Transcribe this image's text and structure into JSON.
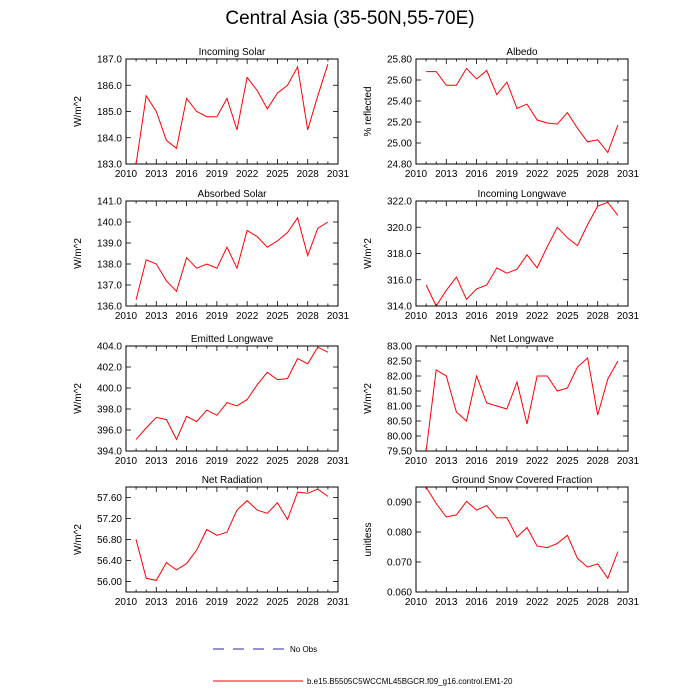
{
  "title": "Central Asia (35-50N,55-70E)",
  "colors": {
    "model": "#ff0000",
    "obs": "#2a2aa0",
    "axis": "#000000"
  },
  "legend": {
    "obs_label": "No Obs",
    "model_label": "b.e15.B5505C5WCCML45BGCR.f09_g16.control.EM1-20"
  },
  "xaxis": {
    "ticks": [
      2010,
      2013,
      2016,
      2019,
      2022,
      2025,
      2028,
      2031
    ],
    "range": [
      2010,
      2031
    ]
  },
  "chart_data": [
    {
      "type": "line",
      "title": "Incoming Solar",
      "ylabel": "W/m^2",
      "ylim": [
        183.0,
        187.0
      ],
      "yticks": [
        "183.0",
        "184.0",
        "185.0",
        "186.0",
        "187.0"
      ],
      "x": [
        2011,
        2012,
        2013,
        2014,
        2015,
        2016,
        2017,
        2018,
        2019,
        2020,
        2021,
        2022,
        2023,
        2024,
        2025,
        2026,
        2027,
        2028,
        2029,
        2030
      ],
      "values": [
        183.0,
        185.6,
        185.0,
        183.9,
        183.6,
        185.5,
        185.0,
        184.8,
        184.8,
        185.5,
        184.3,
        186.3,
        185.8,
        185.1,
        185.7,
        186.0,
        186.7,
        184.3,
        185.6,
        186.8
      ]
    },
    {
      "type": "line",
      "title": "Albedo",
      "ylabel": "% reflected",
      "ylim": [
        24.8,
        25.8
      ],
      "yticks": [
        "24.80",
        "25.00",
        "25.20",
        "25.40",
        "25.60",
        "25.80"
      ],
      "x": [
        2011,
        2012,
        2013,
        2014,
        2015,
        2016,
        2017,
        2018,
        2019,
        2020,
        2021,
        2022,
        2023,
        2024,
        2025,
        2026,
        2027,
        2028,
        2029,
        2030
      ],
      "values": [
        25.68,
        25.68,
        25.55,
        25.55,
        25.71,
        25.61,
        25.69,
        25.46,
        25.58,
        25.33,
        25.37,
        25.22,
        25.19,
        25.18,
        25.29,
        25.14,
        25.01,
        25.03,
        24.91,
        25.17
      ]
    },
    {
      "type": "line",
      "title": "Absorbed Solar",
      "ylabel": "W/m^2",
      "ylim": [
        136.0,
        141.0
      ],
      "yticks": [
        "136.0",
        "137.0",
        "138.0",
        "139.0",
        "140.0",
        "141.0"
      ],
      "x": [
        2011,
        2012,
        2013,
        2014,
        2015,
        2016,
        2017,
        2018,
        2019,
        2020,
        2021,
        2022,
        2023,
        2024,
        2025,
        2026,
        2027,
        2028,
        2029,
        2030
      ],
      "values": [
        136.3,
        138.2,
        138.0,
        137.2,
        136.7,
        138.3,
        137.8,
        138.0,
        137.8,
        138.8,
        137.8,
        139.6,
        139.3,
        138.8,
        139.1,
        139.5,
        140.2,
        138.4,
        139.7,
        140.0
      ]
    },
    {
      "type": "line",
      "title": "Incoming Longwave",
      "ylabel": "W/m^2",
      "ylim": [
        314.0,
        322.0
      ],
      "yticks": [
        "314.0",
        "316.0",
        "318.0",
        "320.0",
        "322.0"
      ],
      "x": [
        2011,
        2012,
        2013,
        2014,
        2015,
        2016,
        2017,
        2018,
        2019,
        2020,
        2021,
        2022,
        2023,
        2024,
        2025,
        2026,
        2027,
        2028,
        2029,
        2030
      ],
      "values": [
        315.6,
        314.0,
        315.2,
        316.2,
        314.5,
        315.3,
        315.6,
        316.9,
        316.5,
        316.8,
        317.9,
        316.9,
        318.5,
        320.0,
        319.2,
        318.6,
        320.2,
        321.6,
        321.9,
        320.9
      ]
    },
    {
      "type": "line",
      "title": "Emitted Longwave",
      "ylabel": "W/m^2",
      "ylim": [
        394.0,
        404.0
      ],
      "yticks": [
        "394.0",
        "396.0",
        "398.0",
        "400.0",
        "402.0",
        "404.0"
      ],
      "x": [
        2011,
        2012,
        2013,
        2014,
        2015,
        2016,
        2017,
        2018,
        2019,
        2020,
        2021,
        2022,
        2023,
        2024,
        2025,
        2026,
        2027,
        2028,
        2029,
        2030
      ],
      "values": [
        395.1,
        396.2,
        397.2,
        397.0,
        395.1,
        397.3,
        396.8,
        397.9,
        397.4,
        398.6,
        398.3,
        398.9,
        400.3,
        401.5,
        400.8,
        400.9,
        402.8,
        402.3,
        403.9,
        403.4
      ]
    },
    {
      "type": "line",
      "title": "Net Longwave",
      "ylabel": "W/m^2",
      "ylim": [
        79.5,
        83.0
      ],
      "yticks": [
        "79.50",
        "80.00",
        "80.50",
        "81.00",
        "81.50",
        "82.00",
        "82.50",
        "83.00"
      ],
      "x": [
        2011,
        2012,
        2013,
        2014,
        2015,
        2016,
        2017,
        2018,
        2019,
        2020,
        2021,
        2022,
        2023,
        2024,
        2025,
        2026,
        2027,
        2028,
        2029,
        2030
      ],
      "values": [
        79.5,
        82.2,
        82.0,
        80.8,
        80.5,
        82.0,
        81.1,
        81.0,
        80.9,
        81.8,
        80.4,
        82.0,
        82.0,
        81.5,
        81.6,
        82.3,
        82.6,
        80.7,
        81.9,
        82.5
      ]
    },
    {
      "type": "line",
      "title": "Net Radiation",
      "ylabel": "W/m^2",
      "ylim": [
        55.8,
        57.8
      ],
      "yticks": [
        "56.00",
        "56.40",
        "56.80",
        "57.20",
        "57.60"
      ],
      "x": [
        2011,
        2012,
        2013,
        2014,
        2015,
        2016,
        2017,
        2018,
        2019,
        2020,
        2021,
        2022,
        2023,
        2024,
        2025,
        2026,
        2027,
        2028,
        2029,
        2030
      ],
      "values": [
        56.8,
        56.06,
        56.02,
        56.36,
        56.22,
        56.34,
        56.6,
        56.99,
        56.88,
        56.94,
        57.36,
        57.54,
        57.36,
        57.3,
        57.5,
        57.18,
        57.7,
        57.68,
        57.76,
        57.62
      ]
    },
    {
      "type": "line",
      "title": "Ground Snow Covered Fraction",
      "ylabel": "unitless",
      "ylim": [
        0.06,
        0.095
      ],
      "yticks": [
        "0.060",
        "0.070",
        "0.080",
        "0.090"
      ],
      "x": [
        2011,
        2012,
        2013,
        2014,
        2015,
        2016,
        2017,
        2018,
        2019,
        2020,
        2021,
        2022,
        2023,
        2024,
        2025,
        2026,
        2027,
        2028,
        2029,
        2030
      ],
      "values": [
        0.095,
        0.0895,
        0.085,
        0.0857,
        0.0902,
        0.0873,
        0.0888,
        0.0847,
        0.0848,
        0.0783,
        0.0815,
        0.0753,
        0.0748,
        0.0762,
        0.0789,
        0.0712,
        0.0683,
        0.0694,
        0.0646,
        0.0735
      ]
    }
  ]
}
